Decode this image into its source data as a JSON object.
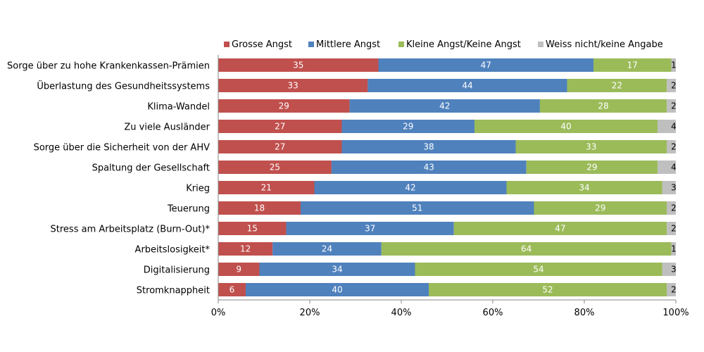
{
  "chart_data": {
    "type": "bar",
    "orientation": "horizontal",
    "stacked": "percent",
    "categories": [
      "Sorge über zu hohe Krankenkassen-Prämien",
      "Überlastung des Gesundheitssystems",
      "Klima-Wandel",
      "Zu viele Ausländer",
      "Sorge über die Sicherheit von der AHV",
      "Spaltung der Gesellschaft",
      "Krieg",
      "Teuerung",
      "Stress am Arbeitsplatz (Burn-Out)*",
      "Arbeitslosigkeit*",
      "Digitalisierung",
      "Stromknappheit"
    ],
    "series": [
      {
        "name": "Grosse Angst",
        "color": "#c0504d",
        "values": [
          35,
          33,
          29,
          27,
          27,
          25,
          21,
          18,
          15,
          12,
          9,
          6
        ]
      },
      {
        "name": "Mittlere Angst",
        "color": "#4f81bd",
        "values": [
          47,
          44,
          42,
          29,
          38,
          43,
          42,
          51,
          37,
          24,
          34,
          40
        ]
      },
      {
        "name": "Kleine Angst/Keine Angst",
        "color": "#9bbb59",
        "values": [
          17,
          22,
          28,
          40,
          33,
          29,
          34,
          29,
          47,
          64,
          54,
          52
        ]
      },
      {
        "name": "Weiss nicht/keine Angabe",
        "color": "#bfbfbf",
        "values": [
          1,
          2,
          2,
          4,
          2,
          4,
          3,
          2,
          2,
          1,
          3,
          2
        ]
      }
    ],
    "xlim": [
      0,
      100
    ],
    "x_ticks": [
      "0%",
      "20%",
      "40%",
      "60%",
      "80%",
      "100%"
    ],
    "legend_position": "top",
    "grid": false,
    "title": "",
    "xlabel": "",
    "ylabel": ""
  }
}
